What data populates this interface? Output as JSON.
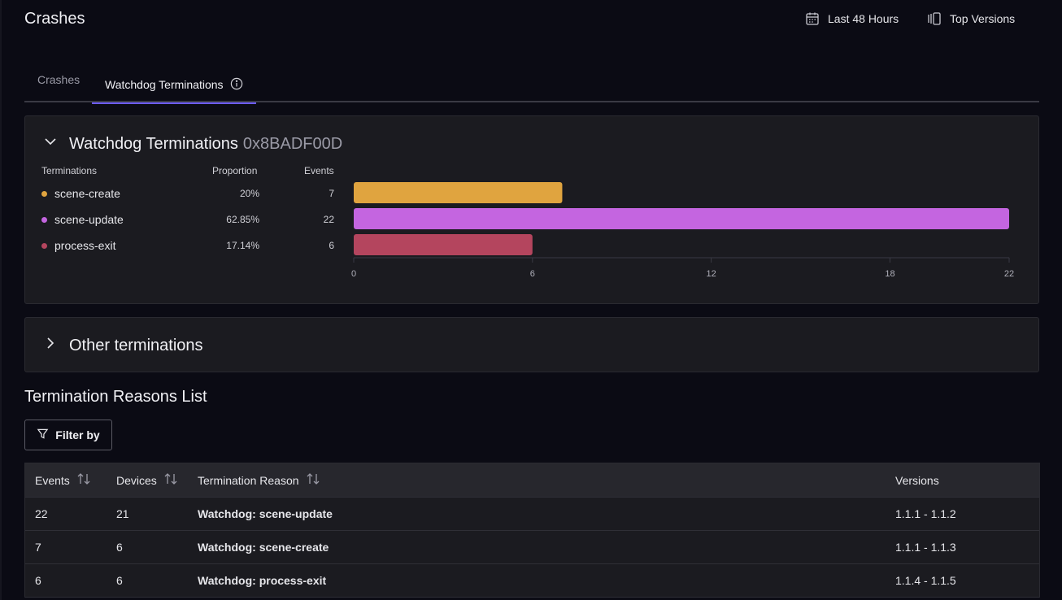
{
  "header": {
    "title": "Crashes",
    "time_range": "Last 48 Hours",
    "versions": "Top Versions"
  },
  "tabs": [
    {
      "label": "Crashes",
      "active": false
    },
    {
      "label": "Watchdog Terminations",
      "active": true
    }
  ],
  "watchdog_panel": {
    "title": "Watchdog Terminations",
    "code": "0x8BADF00D",
    "columns": {
      "terminations": "Terminations",
      "proportion": "Proportion",
      "events": "Events"
    },
    "rows": [
      {
        "label": "scene-create",
        "proportion": "20%",
        "events": "7",
        "color": "#e0a43f"
      },
      {
        "label": "scene-update",
        "proportion": "62.85%",
        "events": "22",
        "color": "#c465e0"
      },
      {
        "label": "process-exit",
        "proportion": "17.14%",
        "events": "6",
        "color": "#b4455e"
      }
    ]
  },
  "chart_data": {
    "type": "bar",
    "orientation": "horizontal",
    "categories": [
      "scene-create",
      "scene-update",
      "process-exit"
    ],
    "values": [
      7,
      22,
      6
    ],
    "colors": [
      "#e0a43f",
      "#c465e0",
      "#b4455e"
    ],
    "xlim": [
      0,
      22
    ],
    "xticks": [
      "0",
      "6",
      "12",
      "18",
      "22"
    ],
    "xtick_values": [
      0,
      6,
      12,
      18,
      22
    ],
    "title": "",
    "xlabel": "",
    "ylabel": ""
  },
  "other_panel": {
    "title": "Other terminations"
  },
  "list": {
    "title": "Termination Reasons List",
    "filter_label": "Filter by",
    "columns": [
      "Events",
      "Devices",
      "Termination Reason",
      "Versions"
    ],
    "rows": [
      {
        "events": "22",
        "devices": "21",
        "reason": "Watchdog: scene-update",
        "versions": "1.1.1 - 1.1.2"
      },
      {
        "events": "7",
        "devices": "6",
        "reason": "Watchdog: scene-create",
        "versions": "1.1.1 - 1.1.3"
      },
      {
        "events": "6",
        "devices": "6",
        "reason": "Watchdog: process-exit",
        "versions": "1.1.4 - 1.1.5"
      }
    ]
  },
  "icons": {
    "time_range": "calendar-icon",
    "versions": "versions-icon",
    "tab_info": "info-icon",
    "collapse": "chevron-down-icon",
    "expand": "chevron-right-icon",
    "filter": "filter-icon",
    "sort": "sort-icon"
  }
}
